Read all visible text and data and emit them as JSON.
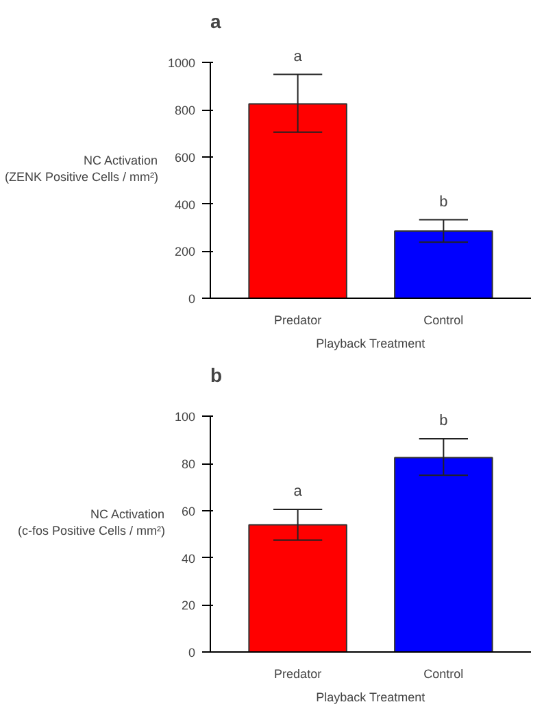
{
  "chart_data": [
    {
      "type": "bar",
      "title": "a",
      "xlabel": "Playback Treatment",
      "ylabel": "NC Activation\n(ZENK Positive Cells / mm²)",
      "categories": [
        "Predator",
        "Control"
      ],
      "series": [
        {
          "values": [
            825,
            285
          ],
          "colors": [
            "#ff0000",
            "#0000ff"
          ],
          "errors": [
            [
              705,
              950
            ],
            [
              238,
              333
            ]
          ]
        }
      ],
      "ylim": [
        0,
        1000
      ],
      "yticks": [
        0,
        200,
        400,
        600,
        800,
        1000
      ],
      "grid": false,
      "annotations": [
        "a",
        "b"
      ]
    },
    {
      "type": "bar",
      "title": "b",
      "xlabel": "Playback Treatment",
      "ylabel": "NC Activation\n(c-fos Positive Cells / mm²)",
      "categories": [
        "Predator",
        "Control"
      ],
      "series": [
        {
          "values": [
            54,
            82.5
          ],
          "colors": [
            "#ff0000",
            "#0000ff"
          ],
          "errors": [
            [
              47.5,
              60.5
            ],
            [
              75,
              90.5
            ]
          ]
        }
      ],
      "ylim": [
        0,
        100
      ],
      "yticks": [
        0,
        20,
        40,
        60,
        80,
        100
      ],
      "grid": false,
      "annotations": [
        "a",
        "b"
      ]
    }
  ]
}
